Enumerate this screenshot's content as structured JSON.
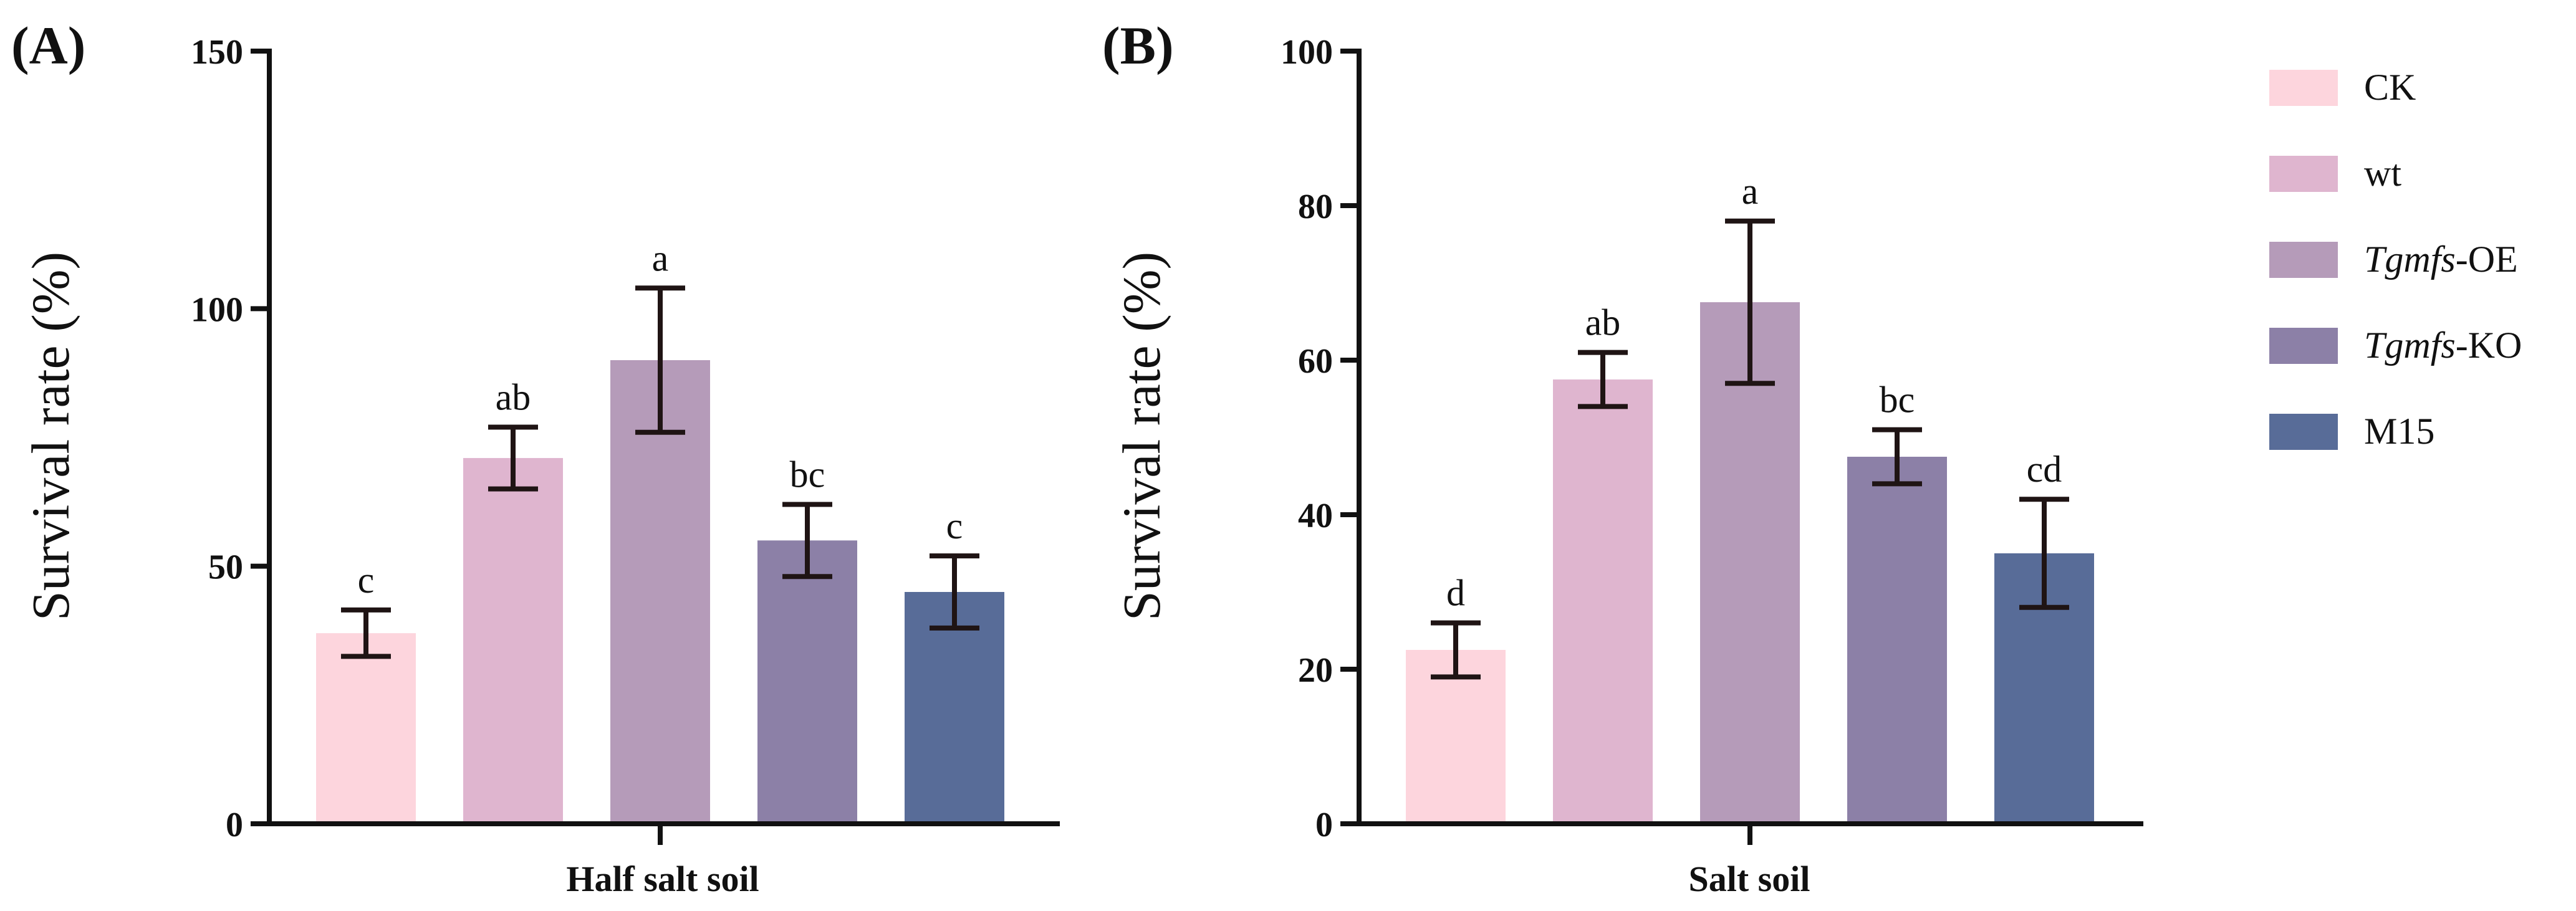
{
  "chart_data": [
    {
      "type": "bar",
      "panel_label": "(A)",
      "title": "",
      "xlabel": "Half salt soil",
      "ylabel": "Survival rate (%)",
      "ylim": [
        0,
        150
      ],
      "yticks": [
        0,
        50,
        100,
        150
      ],
      "categories": [
        "CK",
        "wt",
        "Tgmfs-OE",
        "Tgmfs-KO",
        "M15"
      ],
      "values": [
        37,
        71,
        90,
        55,
        45
      ],
      "errors": [
        4.5,
        6,
        14,
        7,
        7
      ],
      "significance": [
        "c",
        "ab",
        "a",
        "bc",
        "c"
      ]
    },
    {
      "type": "bar",
      "panel_label": "(B)",
      "title": "",
      "xlabel": "Salt soil",
      "ylabel": "Survival rate (%)",
      "ylim": [
        0,
        100
      ],
      "yticks": [
        0,
        20,
        40,
        60,
        80,
        100
      ],
      "categories": [
        "CK",
        "wt",
        "Tgmfs-OE",
        "Tgmfs-KO",
        "M15"
      ],
      "values": [
        22.5,
        57.5,
        67.5,
        47.5,
        35
      ],
      "errors": [
        3.5,
        3.5,
        10.5,
        3.5,
        7
      ],
      "significance": [
        "d",
        "ab",
        "a",
        "bc",
        "cd"
      ]
    }
  ],
  "legend": {
    "position": "right",
    "items": [
      {
        "label": "CK",
        "italic_part": "",
        "rest": "CK",
        "color": "#FDD5DD"
      },
      {
        "label": "wt",
        "italic_part": "",
        "rest": "wt",
        "color": "#DFB5CF"
      },
      {
        "label": "Tgmfs-OE",
        "italic_part": "Tgmfs",
        "rest": "-OE",
        "color": "#B59BB9"
      },
      {
        "label": "Tgmfs-KO",
        "italic_part": "Tgmfs",
        "rest": "-KO",
        "color": "#8C80A7"
      },
      {
        "label": "M15",
        "italic_part": "",
        "rest": "M15",
        "color": "#586C98"
      }
    ]
  }
}
